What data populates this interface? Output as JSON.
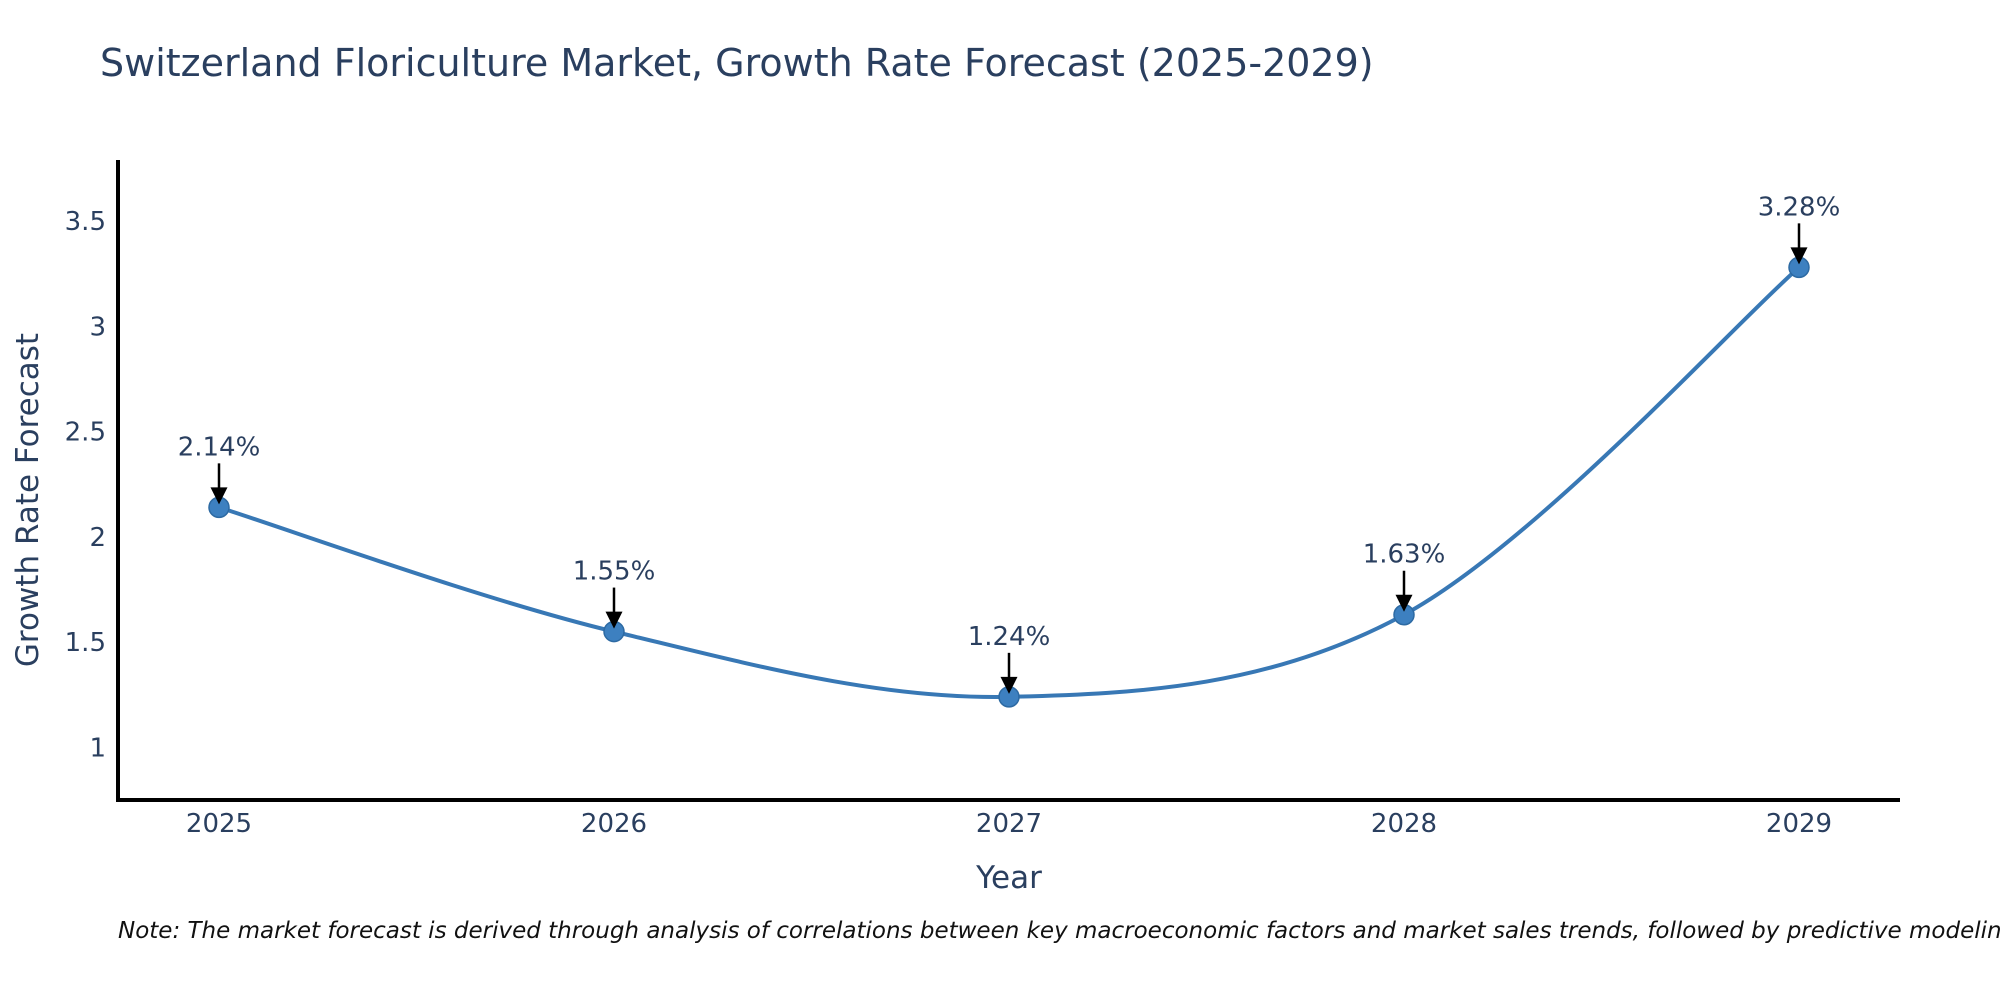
{
  "figure": {
    "note": "Note: The market forecast is derived through analysis of correlations between key macroeconomic factors and market sales trends, followed by predictive modeling to project future sales"
  },
  "chart_data": {
    "type": "line",
    "title": "Switzerland Floriculture Market, Growth Rate Forecast (2025-2029)",
    "xlabel": "Year",
    "ylabel": "Growth Rate Forecast",
    "categories": [
      "2025",
      "2026",
      "2027",
      "2028",
      "2029"
    ],
    "values": [
      2.14,
      1.55,
      1.24,
      1.63,
      3.28
    ],
    "point_labels": [
      "2.14%",
      "1.55%",
      "1.24%",
      "1.63%",
      "3.28%"
    ],
    "ytick_values": [
      1,
      1.5,
      2,
      2.5,
      3,
      3.5
    ],
    "ytick_labels": [
      "1",
      "1.5",
      "2",
      "2.5",
      "3",
      "3.5"
    ],
    "ylim": [
      0.75,
      3.79
    ],
    "line_shape": "spline",
    "grid": false,
    "legend": "none",
    "annotations_style": "arrow-down-to-point",
    "colors": {
      "line": "#3878b5",
      "marker_fill": "#3d80c0",
      "marker_edge": "#2d6aa3",
      "text": "#2a3f5f",
      "axis_line": "#000000",
      "arrow": "#000000",
      "note_text": "#111111",
      "background": "#ffffff"
    }
  }
}
